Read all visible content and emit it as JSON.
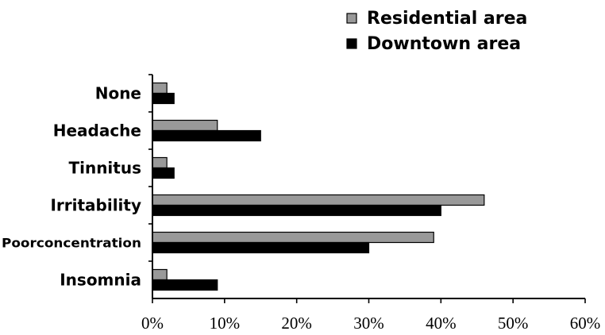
{
  "chart_data": {
    "type": "bar",
    "orientation": "horizontal",
    "categories": [
      "None",
      "Headache",
      "Tinnitus",
      "Irritability",
      "Poor concentration",
      "Insomnia"
    ],
    "category_labels": [
      "None",
      "Headache",
      "Tinnitus",
      "Irritability",
      "Poorconcentration",
      "Insomnia"
    ],
    "series": [
      {
        "name": "Residential area",
        "color": "#999999",
        "values": [
          2,
          9,
          2,
          46,
          39,
          2
        ]
      },
      {
        "name": "Downtown area",
        "color": "#000000",
        "values": [
          3,
          15,
          3,
          40,
          30,
          9
        ]
      }
    ],
    "xlim": [
      0,
      60
    ],
    "xticks": [
      0,
      10,
      20,
      30,
      40,
      50,
      60
    ],
    "xtick_labels": [
      "0%",
      "10%",
      "20%",
      "30%",
      "40%",
      "50%",
      "60%"
    ],
    "xlabel": "",
    "ylabel": "",
    "title": "",
    "grid": false,
    "legend_position": "top-right"
  }
}
